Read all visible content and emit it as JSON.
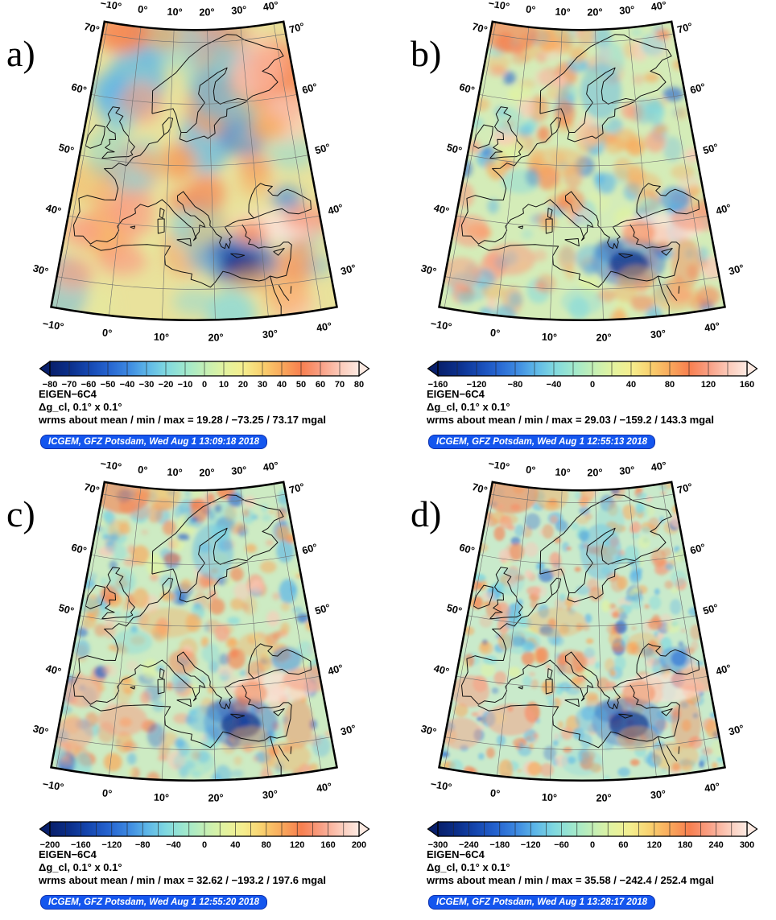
{
  "shared": {
    "map_labels": {
      "top": [
        "−10°",
        "0°",
        "10°",
        "20°",
        "30°",
        "40°"
      ],
      "bottom": [
        "−10°",
        "0°",
        "10°",
        "20°",
        "30°",
        "40°"
      ],
      "left": [
        "70°",
        "60°",
        "50°",
        "40°",
        "30°"
      ],
      "right": [
        "70°",
        "60°",
        "50°",
        "40°",
        "30°"
      ]
    },
    "colormap": [
      "#081f6b",
      "#0b2f8a",
      "#1547b0",
      "#2563cf",
      "#3b86e0",
      "#5cb5e8",
      "#7fd8e0",
      "#9fe8cd",
      "#c2efb6",
      "#e2f3a0",
      "#f5ee8e",
      "#f9d06e",
      "#f9a95c",
      "#f77f4f",
      "#f99e83",
      "#fcc9b8",
      "#fdeae2"
    ],
    "badge_colors": {
      "background": "#1456ee",
      "border": "#0b2fae",
      "text": "#ffffff"
    }
  },
  "panels": [
    {
      "letter": "a)",
      "title": "EIGEN−6C4",
      "subtitle": "Δg_cl, 0.1° x 0.1°",
      "stats": "wrms about mean / min / max = 19.28 / −73.25 / 73.17 mgal",
      "credit": "ICGEM, GFZ Potsdam, Wed Aug 1 13:09:18 2018",
      "colorbar": {
        "min": -80,
        "max": 80,
        "segments": 16,
        "unit": "mgal",
        "tick_labels": [
          "−80",
          "−70",
          "−60",
          "−50",
          "−40",
          "−30",
          "−20",
          "−10",
          "0",
          "10",
          "20",
          "30",
          "40",
          "50",
          "60",
          "70",
          "80"
        ]
      }
    },
    {
      "letter": "b)",
      "title": "EIGEN−6C4",
      "subtitle": "Δg_cl, 0.1° x 0.1°",
      "stats": "wrms about mean / min / max = 29.03 / −159.2 / 143.3 mgal",
      "credit": "ICGEM, GFZ Potsdam, Wed Aug 1 12:55:13 2018",
      "colorbar": {
        "min": -160,
        "max": 160,
        "segments": 16,
        "unit": "mgal",
        "tick_labels": [
          "−160",
          "−120",
          "−80",
          "−40",
          "0",
          "40",
          "80",
          "120",
          "160"
        ]
      }
    },
    {
      "letter": "c)",
      "title": "EIGEN−6C4",
      "subtitle": "Δg_cl, 0.1° x 0.1°",
      "stats": "wrms about mean / min / max = 32.62 / −193.2 / 197.6 mgal",
      "credit": "ICGEM, GFZ Potsdam, Wed Aug 1 12:55:20 2018",
      "colorbar": {
        "min": -200,
        "max": 200,
        "segments": 20,
        "unit": "mgal",
        "tick_labels": [
          "−200",
          "−160",
          "−120",
          "−80",
          "−40",
          "0",
          "40",
          "80",
          "120",
          "160",
          "200"
        ]
      }
    },
    {
      "letter": "d)",
      "title": "EIGEN−6C4",
      "subtitle": "Δg_cl, 0.1° x 0.1°",
      "stats": "wrms about mean / min / max = 35.58 / −242.4 / 252.4 mgal",
      "credit": "ICGEM, GFZ Potsdam, Wed Aug 1 13:28:17 2018",
      "colorbar": {
        "min": -300,
        "max": 300,
        "segments": 20,
        "unit": "mgal",
        "tick_labels": [
          "−300",
          "−240",
          "−180",
          "−120",
          "−60",
          "0",
          "60",
          "120",
          "180",
          "240",
          "300"
        ]
      }
    }
  ]
}
